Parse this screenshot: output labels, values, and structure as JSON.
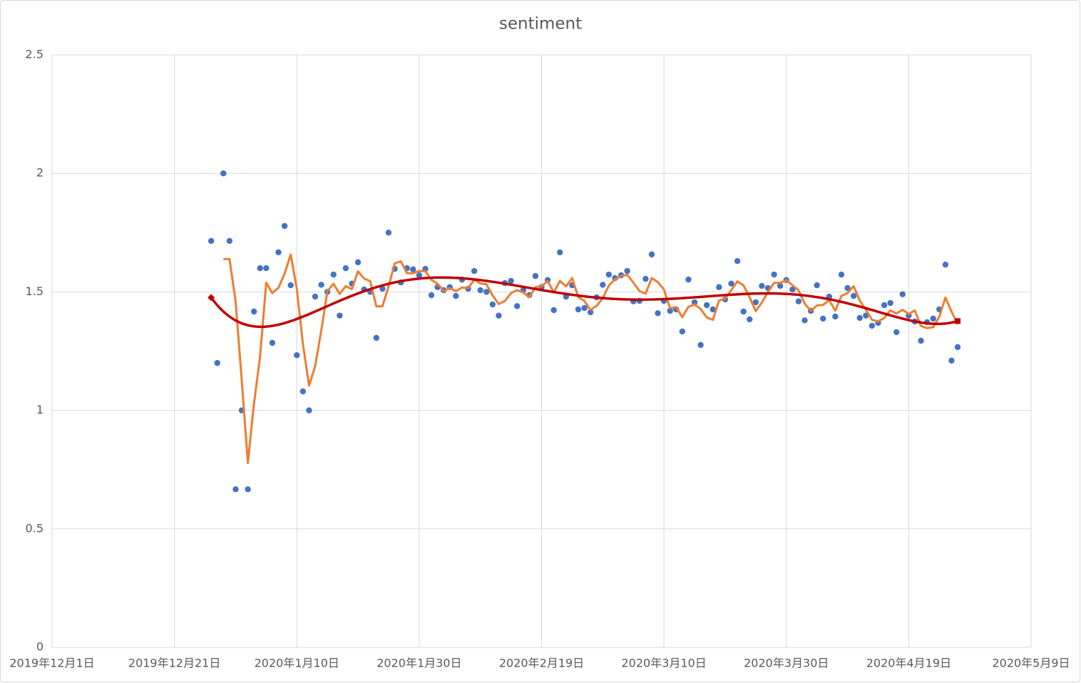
{
  "chart_data": {
    "type": "scatter",
    "title": "sentiment",
    "x": [
      "2019-12-27",
      "2019-12-28",
      "2019-12-29",
      "2019-12-30",
      "2019-12-31",
      "2020-01-01",
      "2020-01-02",
      "2020-01-03",
      "2020-01-04",
      "2020-01-05",
      "2020-01-06",
      "2020-01-07",
      "2020-01-08",
      "2020-01-09",
      "2020-01-10",
      "2020-01-11",
      "2020-01-12",
      "2020-01-13",
      "2020-01-14",
      "2020-01-15",
      "2020-01-16",
      "2020-01-17",
      "2020-01-18",
      "2020-01-19",
      "2020-01-20",
      "2020-01-21",
      "2020-01-22",
      "2020-01-23",
      "2020-01-24",
      "2020-01-25",
      "2020-01-26",
      "2020-01-27",
      "2020-01-28",
      "2020-01-29",
      "2020-01-30",
      "2020-01-31",
      "2020-02-01",
      "2020-02-02",
      "2020-02-03",
      "2020-02-04",
      "2020-02-05",
      "2020-02-06",
      "2020-02-07",
      "2020-02-08",
      "2020-02-09",
      "2020-02-10",
      "2020-02-11",
      "2020-02-12",
      "2020-02-13",
      "2020-02-14",
      "2020-02-15",
      "2020-02-16",
      "2020-02-17",
      "2020-02-18",
      "2020-02-19",
      "2020-02-20",
      "2020-02-21",
      "2020-02-22",
      "2020-02-23",
      "2020-02-24",
      "2020-02-25",
      "2020-02-26",
      "2020-02-27",
      "2020-02-28",
      "2020-02-29",
      "2020-03-01",
      "2020-03-02",
      "2020-03-03",
      "2020-03-04",
      "2020-03-05",
      "2020-03-06",
      "2020-03-07",
      "2020-03-08",
      "2020-03-09",
      "2020-03-10",
      "2020-03-11",
      "2020-03-12",
      "2020-03-13",
      "2020-03-14",
      "2020-03-15",
      "2020-03-16",
      "2020-03-17",
      "2020-03-18",
      "2020-03-19",
      "2020-03-20",
      "2020-03-21",
      "2020-03-22",
      "2020-03-23",
      "2020-03-24",
      "2020-03-25",
      "2020-03-26",
      "2020-03-27",
      "2020-03-28",
      "2020-03-29",
      "2020-03-30",
      "2020-03-31",
      "2020-04-01",
      "2020-04-02",
      "2020-04-03",
      "2020-04-04",
      "2020-04-05",
      "2020-04-06",
      "2020-04-07",
      "2020-04-08",
      "2020-04-09",
      "2020-04-10",
      "2020-04-11",
      "2020-04-12",
      "2020-04-13",
      "2020-04-14",
      "2020-04-15",
      "2020-04-16",
      "2020-04-17",
      "2020-04-18",
      "2020-04-19",
      "2020-04-20",
      "2020-04-21",
      "2020-04-22",
      "2020-04-23",
      "2020-04-24",
      "2020-04-25",
      "2020-04-26",
      "2020-04-27"
    ],
    "values": [
      1.715,
      1.2,
      2.0,
      1.715,
      0.667,
      1.0,
      0.667,
      1.417,
      1.6,
      1.6,
      1.285,
      1.667,
      1.778,
      1.528,
      1.233,
      1.08,
      1.0,
      1.48,
      1.53,
      1.5,
      1.573,
      1.4,
      1.6,
      1.535,
      1.625,
      1.51,
      1.5,
      1.306,
      1.513,
      1.75,
      1.597,
      1.54,
      1.6,
      1.595,
      1.57,
      1.597,
      1.486,
      1.52,
      1.507,
      1.52,
      1.483,
      1.552,
      1.513,
      1.588,
      1.507,
      1.5,
      1.447,
      1.4,
      1.537,
      1.546,
      1.44,
      1.507,
      1.486,
      1.567,
      1.52,
      1.55,
      1.423,
      1.667,
      1.48,
      1.528,
      1.426,
      1.432,
      1.414,
      1.477,
      1.53,
      1.573,
      1.558,
      1.57,
      1.588,
      1.46,
      1.462,
      1.555,
      1.658,
      1.41,
      1.462,
      1.42,
      1.426,
      1.333,
      1.552,
      1.456,
      1.276,
      1.444,
      1.426,
      1.52,
      1.468,
      1.535,
      1.63,
      1.417,
      1.384,
      1.456,
      1.525,
      1.516,
      1.573,
      1.525,
      1.55,
      1.51,
      1.46,
      1.38,
      1.42,
      1.528,
      1.387,
      1.48,
      1.396,
      1.573,
      1.516,
      1.483,
      1.39,
      1.4,
      1.357,
      1.369,
      1.444,
      1.453,
      1.33,
      1.49,
      1.4,
      1.375,
      1.294,
      1.372,
      1.387,
      1.426,
      1.615,
      1.21,
      1.267
    ],
    "color": "#4472c4",
    "trendlines": [
      {
        "type": "moving_average",
        "period": 3,
        "color": "#ed7d31"
      },
      {
        "type": "polynomial",
        "order": 6,
        "color": "#c00000"
      }
    ],
    "xlim": [
      "2019-12-01",
      "2020-05-09"
    ],
    "xticks": [
      {
        "value": "2019-12-01",
        "label": "2019年12月1日"
      },
      {
        "value": "2019-12-21",
        "label": "2019年12月21日"
      },
      {
        "value": "2020-01-10",
        "label": "2020年1月10日"
      },
      {
        "value": "2020-01-30",
        "label": "2020年1月30日"
      },
      {
        "value": "2020-02-19",
        "label": "2020年2月19日"
      },
      {
        "value": "2020-03-10",
        "label": "2020年3月10日"
      },
      {
        "value": "2020-03-30",
        "label": "2020年3月30日"
      },
      {
        "value": "2020-04-19",
        "label": "2020年4月19日"
      },
      {
        "value": "2020-05-09",
        "label": "2020年5月9日"
      }
    ],
    "ylim": [
      0,
      2.5
    ],
    "yticks": [
      0,
      0.5,
      1,
      1.5,
      2,
      2.5
    ],
    "grid": true
  }
}
